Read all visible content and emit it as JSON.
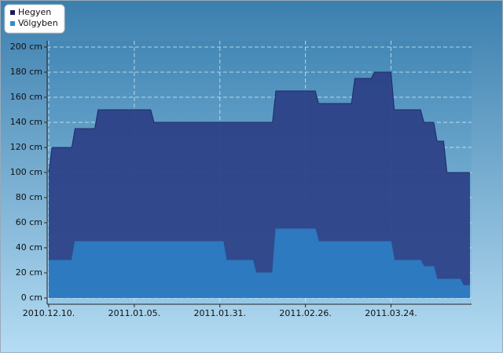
{
  "chart_data": {
    "type": "area",
    "x": [
      "2010.12.10.",
      "2010.12.11.",
      "2010.12.17.",
      "2010.12.18.",
      "2010.12.24.",
      "2010.12.25.",
      "2011.01.10.",
      "2011.01.11.",
      "2011.02.01.",
      "2011.02.02.",
      "2011.02.10.",
      "2011.02.11.",
      "2011.02.16.",
      "2011.02.17.",
      "2011.03.01.",
      "2011.03.02.",
      "2011.03.12.",
      "2011.03.13.",
      "2011.03.18.",
      "2011.03.19.",
      "2011.03.24.",
      "2011.03.25.",
      "2011.04.02.",
      "2011.04.03.",
      "2011.04.06.",
      "2011.04.07.",
      "2011.04.09.",
      "2011.04.10.",
      "2011.04.14.",
      "2011.04.15.",
      "2011.04.17."
    ],
    "series": [
      {
        "name": "Hegyen",
        "color": "#2b3f86",
        "legend_color": "#1b1b5e",
        "values": [
          100,
          120,
          120,
          135,
          135,
          150,
          150,
          140,
          140,
          140,
          140,
          140,
          140,
          165,
          165,
          155,
          155,
          175,
          175,
          180,
          180,
          150,
          150,
          140,
          140,
          125,
          125,
          100,
          100,
          100,
          100
        ]
      },
      {
        "name": "Völgyben",
        "color": "#2e7fc4",
        "legend_color": "#2a8fd2",
        "values": [
          30,
          30,
          30,
          45,
          45,
          45,
          45,
          45,
          45,
          30,
          30,
          20,
          20,
          55,
          55,
          45,
          45,
          45,
          45,
          45,
          45,
          30,
          30,
          25,
          25,
          15,
          15,
          15,
          15,
          10,
          10
        ]
      }
    ],
    "xlim": [
      "2010.12.10.",
      "2011.04.17."
    ],
    "xticks": [
      "2010.12.10.",
      "2011.01.05.",
      "2011.01.31.",
      "2011.02.26.",
      "2011.03.24."
    ],
    "ylim": [
      -5,
      205
    ],
    "yticks": [
      {
        "value": 0,
        "label": "0 cm"
      },
      {
        "value": 20,
        "label": "20 cm"
      },
      {
        "value": 40,
        "label": "40 cm"
      },
      {
        "value": 60,
        "label": "60 cm"
      },
      {
        "value": 80,
        "label": "80 cm"
      },
      {
        "value": 100,
        "label": "100 cm"
      },
      {
        "value": 120,
        "label": "120 cm"
      },
      {
        "value": 140,
        "label": "140 cm"
      },
      {
        "value": 160,
        "label": "160 cm"
      },
      {
        "value": 180,
        "label": "180 cm"
      },
      {
        "value": 200,
        "label": "200 cm"
      }
    ],
    "grid": true
  }
}
